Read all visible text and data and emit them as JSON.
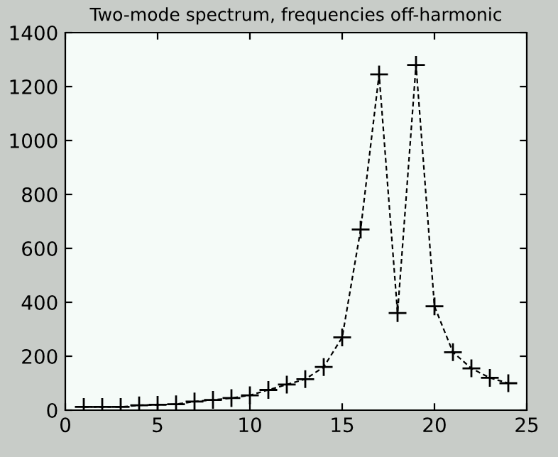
{
  "chart_data": {
    "type": "line",
    "title": "Two-mode spectrum, frequencies off-harmonic",
    "x": [
      1,
      2,
      3,
      4,
      5,
      6,
      7,
      8,
      9,
      10,
      11,
      12,
      13,
      14,
      15,
      16,
      17,
      18,
      19,
      20,
      21,
      22,
      23,
      24
    ],
    "series": [
      {
        "color": "#000000",
        "values": [
          12,
          12,
          12,
          18,
          20,
          22,
          32,
          38,
          45,
          55,
          75,
          95,
          115,
          160,
          270,
          670,
          1245,
          360,
          1280,
          385,
          215,
          155,
          120,
          100
        ]
      }
    ],
    "xlim": [
      0,
      25
    ],
    "xticks": [
      0,
      5,
      10,
      15,
      20,
      25
    ],
    "ylim": [
      0,
      1400
    ],
    "yticks": [
      0,
      200,
      400,
      600,
      800,
      1000,
      1200,
      1400
    ],
    "marker": "cross",
    "line_style": "dashed",
    "grid": false,
    "legend": false
  }
}
